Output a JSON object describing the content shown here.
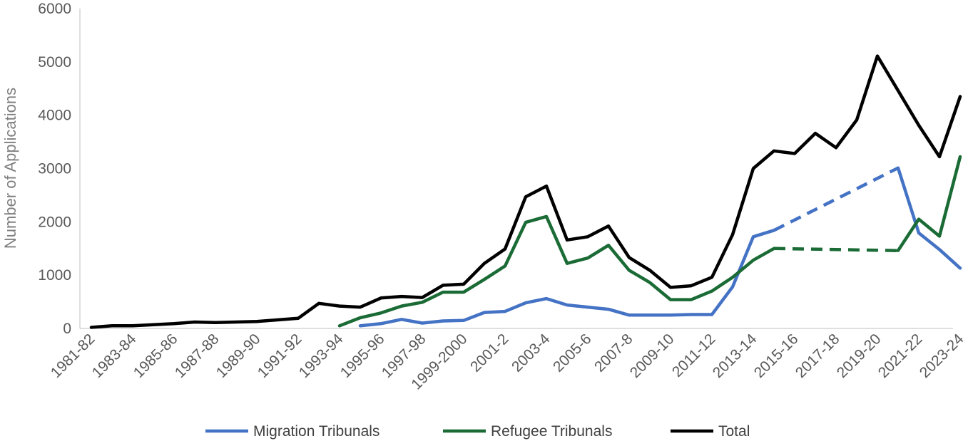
{
  "chart_data": {
    "type": "line",
    "title": "",
    "xlabel": "",
    "ylabel": "Number of Applications",
    "ylim": [
      0,
      6000
    ],
    "yticks": [
      0,
      1000,
      2000,
      3000,
      4000,
      5000,
      6000
    ],
    "yticks_text": [
      "0",
      "1000",
      "2000",
      "3000",
      "4000",
      "5000",
      "6000"
    ],
    "grid": false,
    "legend_position": "bottom",
    "categories": [
      "1981-82",
      "1982-83",
      "1983-84",
      "1984-85",
      "1985-86",
      "1986-87",
      "1987-88",
      "1988-89",
      "1989-90",
      "1990-91",
      "1991-92",
      "1992-93",
      "1993-94",
      "1994-95",
      "1995-96",
      "1996-97",
      "1997-98",
      "1998-99",
      "1999-2000",
      "2000-1",
      "2001-2",
      "2002-3",
      "2003-4",
      "2004-5",
      "2005-6",
      "2006-7",
      "2007-8",
      "2008-9",
      "2009-10",
      "2010-11",
      "2011-12",
      "2012-13",
      "2013-14",
      "2014-15",
      "2015-16",
      "2016-17",
      "2017-18",
      "2018-19",
      "2019-20",
      "2020-21",
      "2021-22",
      "2022-23",
      "2023-24"
    ],
    "tick_labels": [
      "1981-82",
      "1983-84",
      "1985-86",
      "1987-88",
      "1989-90",
      "1991-92",
      "1993-94",
      "1995-96",
      "1997-98",
      "1999-2000",
      "2001-2",
      "2003-4",
      "2005-6",
      "2007-8",
      "2009-10",
      "2011-12",
      "2013-14",
      "2015-16",
      "2017-18",
      "2019-20",
      "2021-22",
      "2023-24"
    ],
    "series": [
      {
        "name": "Migration Tribunals",
        "color": "#4472c4",
        "values": [
          null,
          null,
          null,
          null,
          null,
          null,
          null,
          null,
          null,
          null,
          null,
          null,
          null,
          50,
          90,
          170,
          100,
          140,
          150,
          300,
          320,
          480,
          560,
          440,
          400,
          360,
          250,
          250,
          250,
          260,
          260,
          780,
          1720,
          1840,
          null,
          null,
          null,
          null,
          null,
          3010,
          1790,
          1480,
          1130
        ],
        "dashed_from": 33,
        "dashed_to": 39
      },
      {
        "name": "Refugee Tribunals",
        "color": "#1a6b35",
        "values": [
          null,
          null,
          null,
          null,
          null,
          null,
          null,
          null,
          null,
          null,
          null,
          null,
          50,
          200,
          290,
          420,
          490,
          680,
          680,
          920,
          1170,
          1990,
          2100,
          1220,
          1320,
          1560,
          1090,
          860,
          540,
          540,
          700,
          960,
          1280,
          1500,
          null,
          null,
          null,
          null,
          null,
          1460,
          2050,
          1730,
          3220
        ],
        "dashed_from": 33,
        "dashed_to": 39
      },
      {
        "name": "Total",
        "color": "#000000",
        "values": [
          20,
          50,
          50,
          70,
          90,
          120,
          110,
          120,
          130,
          160,
          190,
          470,
          420,
          400,
          570,
          600,
          580,
          810,
          830,
          1220,
          1490,
          2470,
          2670,
          1660,
          1720,
          1920,
          1330,
          1090,
          770,
          800,
          960,
          1760,
          3000,
          3330,
          3280,
          3660,
          3390,
          3910,
          5110,
          4460,
          3810,
          3220,
          4350
        ]
      }
    ]
  }
}
